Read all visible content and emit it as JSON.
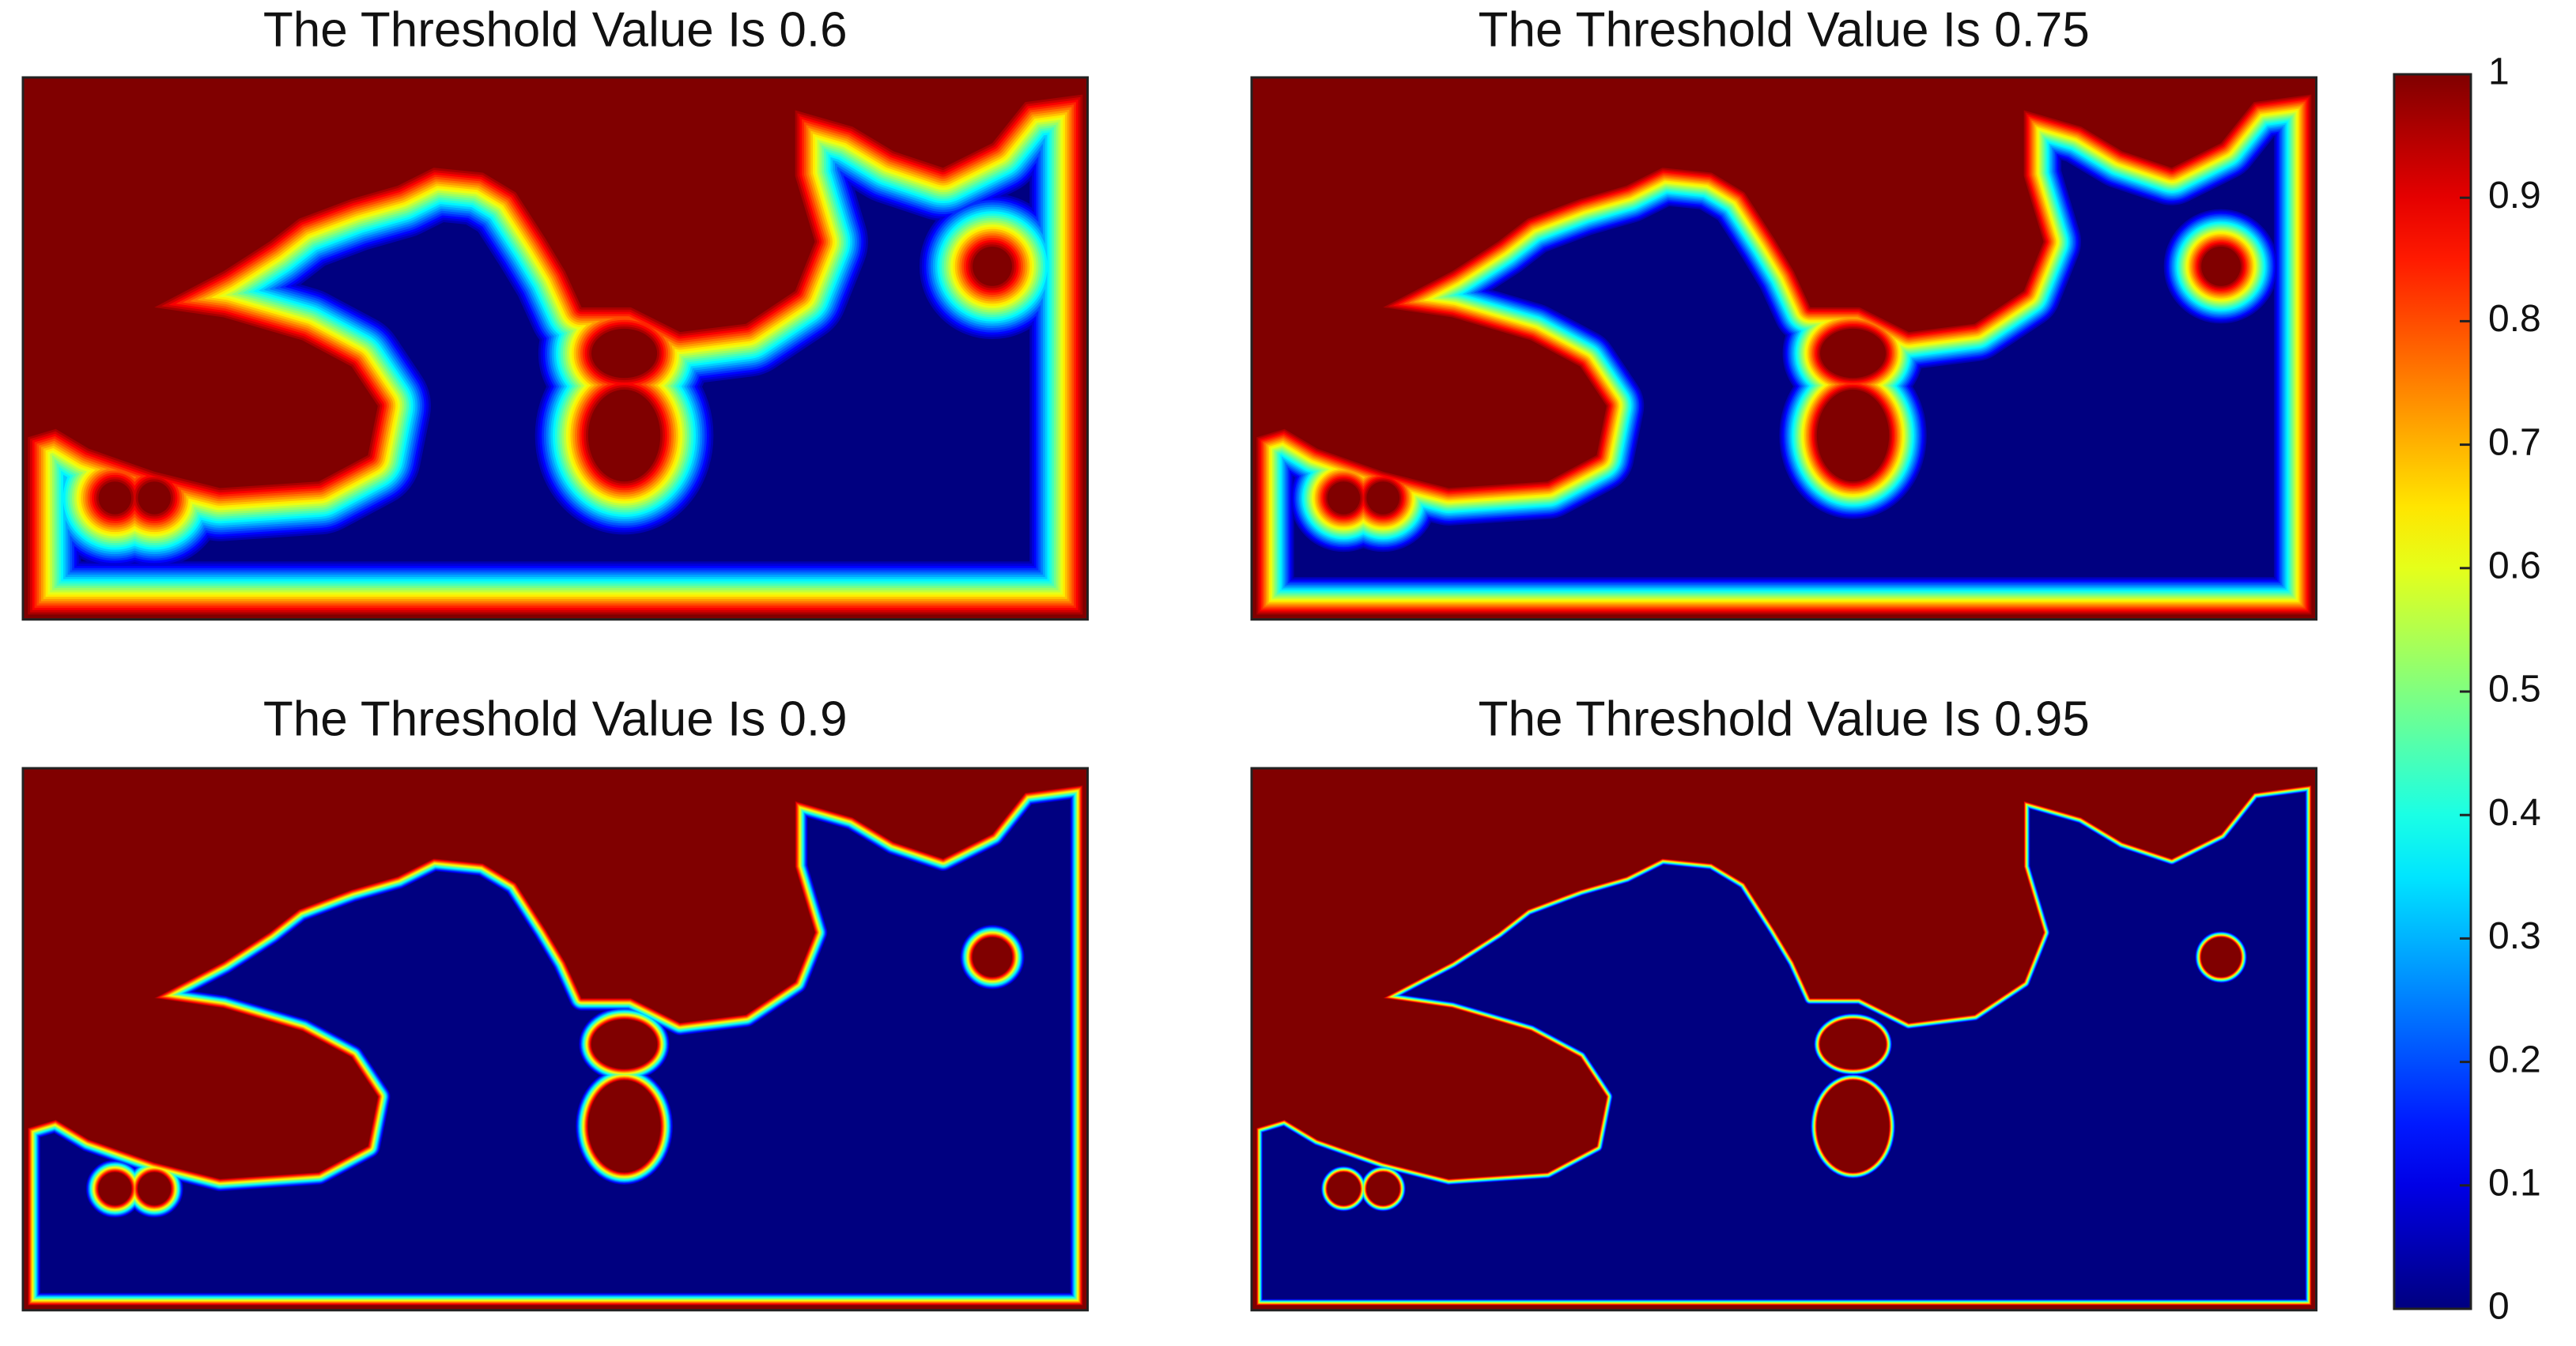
{
  "chart_data": [
    {
      "type": "heatmap",
      "title": "The Threshold Value Is 0.6"
    },
    {
      "type": "heatmap",
      "title": "The Threshold Value Is 0.75"
    },
    {
      "type": "heatmap",
      "title": "The Threshold Value Is 0.9"
    },
    {
      "type": "heatmap",
      "title": "The Threshold Value Is 0.95"
    }
  ],
  "colorbar": {
    "colormap": "jet",
    "clim": [
      0,
      1
    ],
    "ticks": [
      0,
      0.1,
      0.2,
      0.3,
      0.4,
      0.5,
      0.6,
      0.7,
      0.8,
      0.9,
      1
    ]
  }
}
